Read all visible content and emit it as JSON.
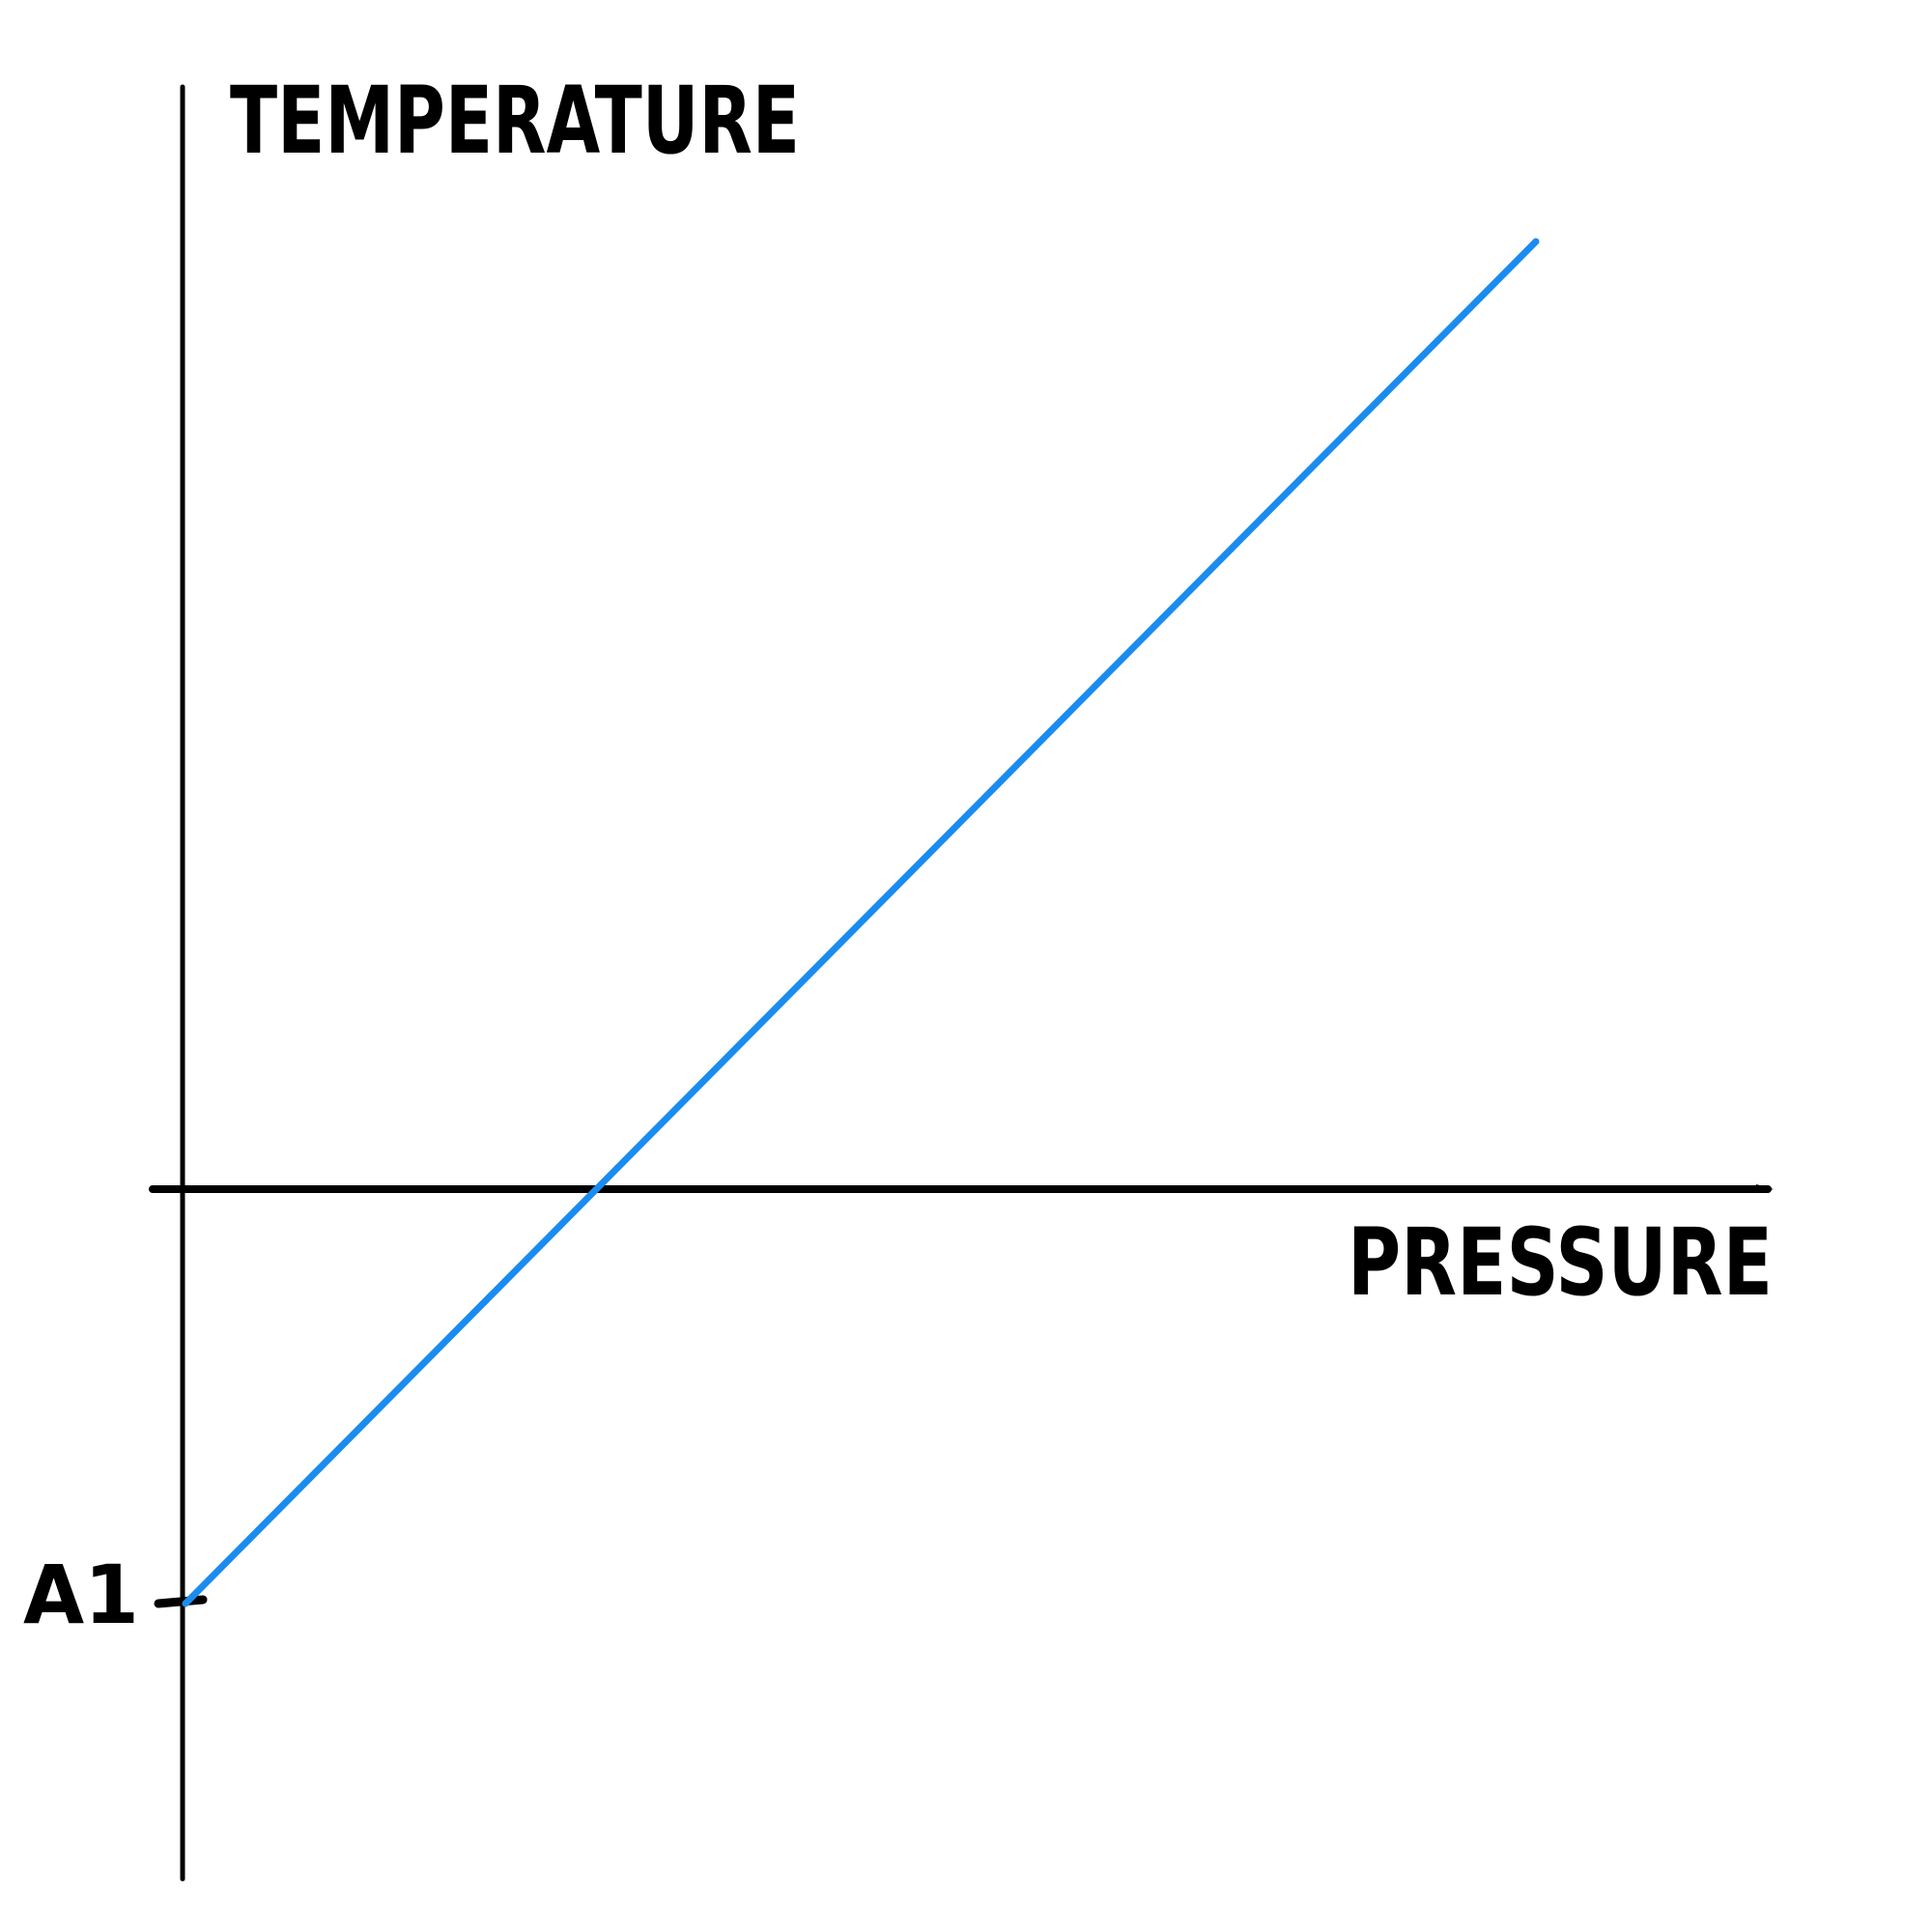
{
  "chart_data": {
    "type": "line",
    "title": "",
    "xlabel": "PRESSURE",
    "ylabel": "TEMPERATURE",
    "y_tick_labels": [
      "A1"
    ],
    "series": [
      {
        "x": [
          0,
          1
        ],
        "y": [
          0,
          1
        ]
      }
    ],
    "grid": false,
    "legend": "none",
    "colors": {
      "axis": "#000000",
      "line": "#1a8cf0"
    }
  }
}
